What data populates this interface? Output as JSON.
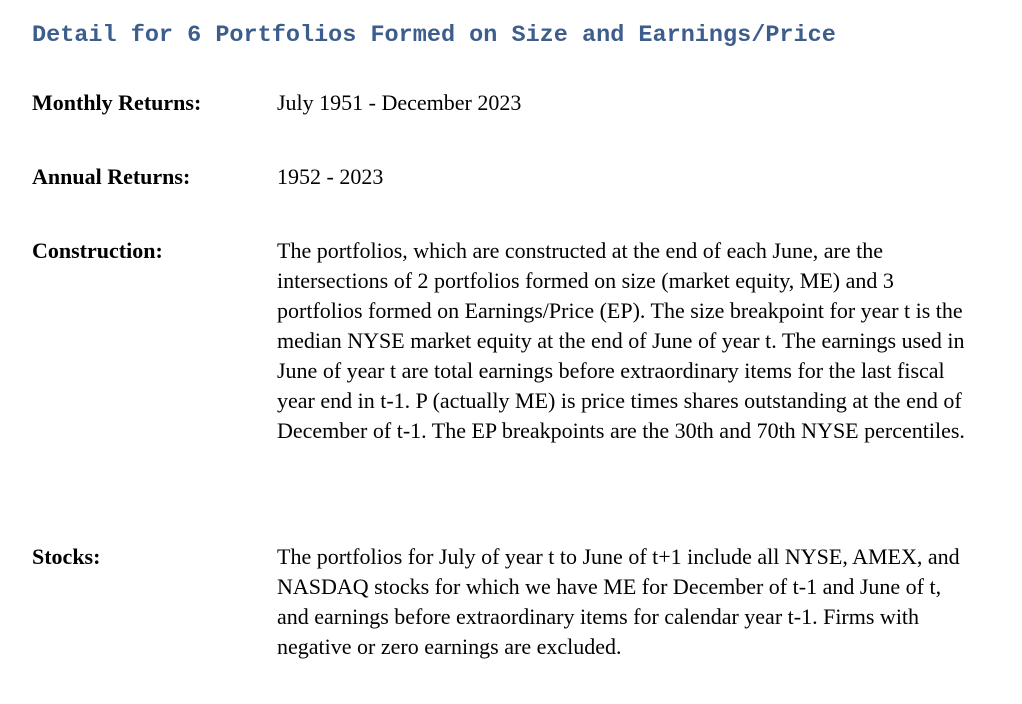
{
  "page": {
    "title": "Detail for 6 Portfolios Formed on Size and Earnings/Price"
  },
  "colors": {
    "title": "#3d5e8c",
    "text": "#000000",
    "background": "#ffffff"
  },
  "details": [
    {
      "label": "Monthly Returns:",
      "value": "July 1951 - December 2023"
    },
    {
      "label": "Annual Returns:",
      "value": "1952 - 2023"
    },
    {
      "label": "Construction:",
      "value": "The portfolios, which are constructed at the end of each June, are the intersections of 2 portfolios formed on size (market equity, ME) and 3 portfolios formed on Earnings/Price (EP). The size breakpoint for year t is the median NYSE market equity at the end of June of year t. The earnings used in June of year t are total earnings before extraordinary items for the last fiscal year end in t-1. P (actually ME) is price times shares outstanding at the end of December of t-1. The EP breakpoints are the 30th and 70th NYSE percentiles."
    },
    {
      "label": "Stocks:",
      "value": "The portfolios for July of year t to June of t+1 include all NYSE, AMEX, and NASDAQ stocks for which we have ME for December of t-1 and June of t, and earnings before extraordinary items for calendar year t-1. Firms with negative or zero earnings are excluded."
    }
  ]
}
